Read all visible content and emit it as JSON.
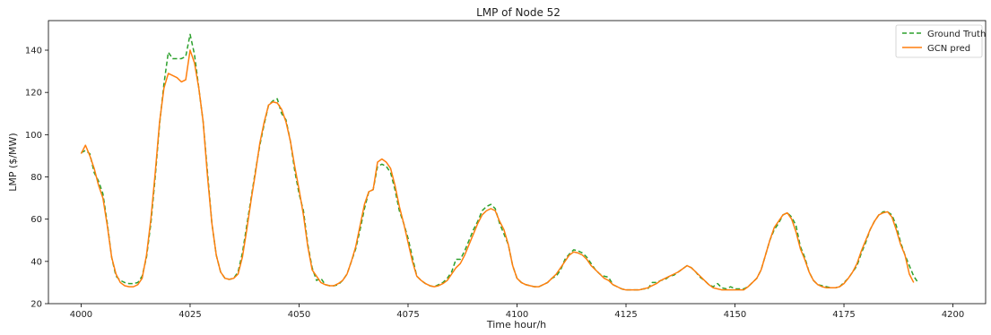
{
  "chart_data": {
    "type": "line",
    "title": "LMP of Node 52",
    "xlabel": "Time hour/h",
    "ylabel": "LMP ($/MW)",
    "xlim": [
      3992.5,
      4207.5
    ],
    "ylim": [
      20,
      154
    ],
    "x_ticks": [
      4000,
      4025,
      4050,
      4075,
      4100,
      4125,
      4150,
      4175,
      4200
    ],
    "y_ticks": [
      20,
      40,
      60,
      80,
      100,
      120,
      140
    ],
    "grid": false,
    "legend_placement": "upper-right",
    "x_start": 4000,
    "series": [
      {
        "name": "Ground Truth",
        "color": "#2ca02c",
        "style": "dashed",
        "values": [
          91.5,
          92.5,
          91,
          82,
          78,
          72,
          58,
          42,
          33,
          31,
          30,
          29.5,
          29.5,
          30,
          33,
          42,
          58,
          80,
          105,
          124,
          139,
          136,
          136,
          136,
          137,
          147.5,
          138,
          122,
          106,
          82,
          58,
          43,
          35,
          32,
          31.5,
          32,
          35,
          44,
          57,
          70,
          83,
          95,
          105,
          114,
          116,
          117,
          110,
          107,
          97,
          83,
          72,
          64,
          48,
          37,
          31,
          32,
          29,
          28.5,
          28.5,
          29,
          31,
          34,
          40,
          46,
          55,
          65,
          73,
          74,
          85,
          86,
          85,
          82,
          74,
          64,
          58,
          51,
          42,
          33,
          31,
          29.5,
          28.5,
          28,
          29,
          30,
          32,
          35,
          41,
          41,
          45,
          50,
          55,
          59,
          64,
          66,
          67,
          65,
          58,
          53,
          48,
          38,
          32,
          30,
          29,
          28.5,
          28,
          28,
          29,
          30,
          32,
          33,
          36,
          41,
          43.5,
          45.5,
          45,
          44,
          42,
          39,
          36,
          34,
          33,
          32.5,
          29,
          28,
          27,
          26.5,
          26.5,
          26.5,
          26.5,
          27,
          27,
          30,
          30,
          31,
          31.5,
          33,
          33.5,
          35,
          36.5,
          38,
          37,
          35,
          32.5,
          31,
          29,
          28,
          29.5,
          27.5,
          27,
          28,
          27,
          27,
          27,
          28,
          30,
          32,
          36,
          43,
          50,
          55,
          58,
          62,
          63,
          61,
          57,
          47,
          42,
          35,
          31,
          29,
          28.5,
          28,
          27.5,
          27.5,
          28,
          30,
          32,
          35,
          38,
          44,
          49,
          55,
          59,
          62,
          63.5,
          63.5,
          62,
          57,
          49,
          43,
          38,
          33,
          30
        ]
      },
      {
        "name": "GCN pred",
        "color": "#ff7f0e",
        "style": "solid",
        "values": [
          91,
          95,
          90,
          84,
          76,
          70,
          57,
          42,
          34,
          30,
          28.5,
          28,
          28,
          29,
          32,
          43,
          60,
          82,
          106,
          122,
          129,
          128,
          127,
          125,
          126,
          140,
          134,
          122,
          106,
          80,
          58,
          43,
          35,
          32,
          31.5,
          32,
          34,
          42,
          55,
          69,
          82,
          96,
          106,
          114,
          115.5,
          115,
          112,
          106,
          97,
          85,
          74,
          62,
          47,
          36,
          33,
          30,
          29,
          28.5,
          28.5,
          29.5,
          31,
          34,
          40,
          47,
          57,
          67,
          73,
          74,
          87,
          88.5,
          87,
          84,
          76,
          66,
          58,
          49,
          40,
          33,
          31,
          29.5,
          28.5,
          28,
          28.5,
          29.5,
          31,
          34,
          37,
          39,
          43,
          48,
          53,
          58,
          62,
          64,
          65,
          64,
          59,
          55,
          48,
          38,
          32,
          30,
          29,
          28.5,
          28,
          28,
          29,
          30,
          32,
          34,
          37,
          40,
          43,
          44.5,
          44,
          43,
          41,
          38,
          36,
          34,
          32,
          31,
          29,
          28,
          27,
          26.5,
          26.5,
          26.5,
          26.5,
          27,
          27.5,
          28.5,
          29.5,
          31,
          32,
          33,
          34,
          35,
          36.5,
          38,
          37,
          35,
          33,
          31,
          29,
          27.5,
          27,
          26.5,
          26.5,
          26.5,
          26.5,
          26.5,
          26.5,
          28,
          30,
          32,
          36,
          43,
          50,
          56,
          59,
          62,
          63,
          60,
          54,
          46,
          41,
          35,
          31,
          29,
          28,
          27.5,
          27.5,
          27.5,
          28,
          29.5,
          32,
          35,
          39,
          45,
          50,
          55,
          59,
          62,
          63,
          63.5,
          61,
          55,
          48,
          43,
          34,
          30
        ]
      }
    ]
  }
}
